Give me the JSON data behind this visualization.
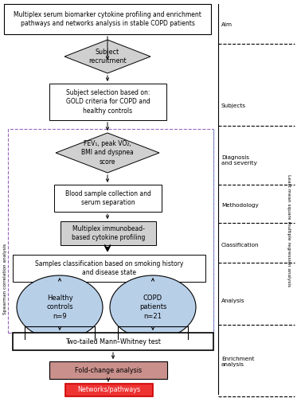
{
  "title_box": "Multiplex serum biomarker cytokine profiling and enrichment\npathways and networks analysis in stable COPD patients",
  "diamond1_text": "Subject\nrecruitment",
  "box1_text": "Subject selection based on:\nGOLD criteria for COPD and\nhealthy controls",
  "diamond2_text": "FEV₁, peak VO₂,\nBMI and dyspnea\nscore",
  "box2_text": "Blood sample collection and\nserum separation",
  "box3_text": "Multiplex immunobead-\nbased cytokine profiling",
  "box4_text": "Samples classification based on smoking history\nand disease state",
  "circle1_text": "Healthy\ncontrols\nn=9",
  "circle2_text": "COPD\npatients\nn=21",
  "box5_text": "Two-tailed Mann–Whitney test",
  "box6_text": "Fold-change analysis",
  "box7_text": "Networks/pathways",
  "right_labels": [
    "Aim",
    "Subjects",
    "Diagnosis\nand severity",
    "Methodology",
    "Classification",
    "Analysis",
    "Enrichment\nanalysis"
  ],
  "spearman_label": "Spearman correlation analysis",
  "lsm_label": "Least mean square multiple regression analysis",
  "colors": {
    "diamond_fill": "#d0d0d0",
    "box3_fill": "#d0d0d0",
    "circle_fill": "#b8cfe8",
    "box6_fill": "#c9908c",
    "box7_fill": "#ee3333",
    "dashed_border": "#9966bb",
    "lsm_border": "#7799cc"
  }
}
